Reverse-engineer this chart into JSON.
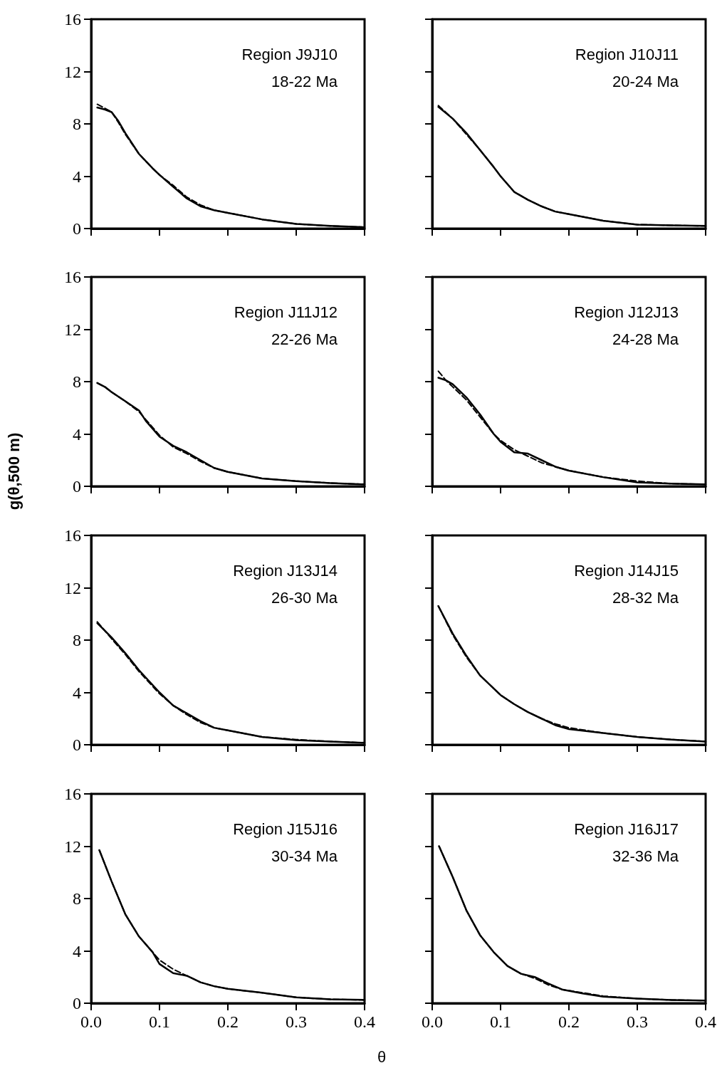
{
  "chart_data": [
    {
      "type": "line",
      "annotations": [
        "Region J9J10",
        "18-22 Ma"
      ],
      "x": [
        0.009,
        0.02,
        0.03,
        0.04,
        0.05,
        0.07,
        0.09,
        0.1,
        0.12,
        0.14,
        0.16,
        0.18,
        0.2,
        0.25,
        0.3,
        0.35,
        0.4
      ],
      "series": [
        {
          "color": "#000000",
          "line_style": "solid",
          "values": [
            9.25,
            9.1,
            8.9,
            8.2,
            7.3,
            5.7,
            4.6,
            4.1,
            3.2,
            2.3,
            1.7,
            1.4,
            1.2,
            0.7,
            0.35,
            0.2,
            0.1
          ]
        },
        {
          "color": "#000000",
          "line_style": "dashed",
          "values": [
            9.5,
            9.2,
            8.9,
            8.1,
            7.2,
            5.7,
            4.6,
            4.1,
            3.3,
            2.4,
            1.8,
            1.4,
            1.2,
            0.7,
            0.35,
            0.2,
            0.1
          ]
        }
      ],
      "xlim": [
        0,
        0.4
      ],
      "xticks": [
        0,
        0.1,
        0.2,
        0.3,
        0.4
      ],
      "ylim": [
        0,
        16
      ],
      "yticks": [
        0,
        4,
        8,
        12,
        16
      ],
      "tick_labels": "y",
      "marker": "none"
    },
    {
      "type": "line",
      "annotations": [
        "Region J10J11",
        "20-24 Ma"
      ],
      "x": [
        0.009,
        0.03,
        0.05,
        0.07,
        0.09,
        0.1,
        0.12,
        0.14,
        0.16,
        0.18,
        0.2,
        0.25,
        0.3,
        0.35,
        0.4
      ],
      "series": [
        {
          "color": "#000000",
          "line_style": "solid",
          "values": [
            9.3,
            8.4,
            7.3,
            6.0,
            4.7,
            4.0,
            2.8,
            2.2,
            1.7,
            1.3,
            1.1,
            0.6,
            0.3,
            0.25,
            0.2
          ]
        },
        {
          "color": "#000000",
          "line_style": "dashed",
          "values": [
            9.4,
            8.4,
            7.2,
            6.0,
            4.7,
            4.0,
            2.8,
            2.2,
            1.7,
            1.3,
            1.1,
            0.6,
            0.3,
            0.25,
            0.2
          ]
        }
      ],
      "xlim": [
        0,
        0.4
      ],
      "xticks": [
        0,
        0.1,
        0.2,
        0.3,
        0.4
      ],
      "ylim": [
        0,
        16
      ],
      "yticks": [
        0,
        4,
        8,
        12,
        16
      ],
      "tick_labels": false,
      "marker": "none"
    },
    {
      "type": "line",
      "annotations": [
        "Region J11J12",
        "22-26 Ma"
      ],
      "ylabel": "g(θ,500 m)",
      "x": [
        0.009,
        0.02,
        0.03,
        0.05,
        0.07,
        0.08,
        0.1,
        0.12,
        0.14,
        0.16,
        0.18,
        0.2,
        0.25,
        0.3,
        0.35,
        0.4
      ],
      "series": [
        {
          "color": "#000000",
          "line_style": "solid",
          "values": [
            7.9,
            7.6,
            7.2,
            6.5,
            5.8,
            5.0,
            3.8,
            3.1,
            2.6,
            2.0,
            1.4,
            1.1,
            0.6,
            0.4,
            0.25,
            0.15
          ]
        },
        {
          "color": "#000000",
          "line_style": "dashed",
          "values": [
            7.9,
            7.6,
            7.2,
            6.5,
            5.7,
            5.1,
            3.9,
            3.0,
            2.5,
            1.9,
            1.4,
            1.1,
            0.6,
            0.4,
            0.25,
            0.15
          ]
        }
      ],
      "xlim": [
        0,
        0.4
      ],
      "xticks": [
        0,
        0.1,
        0.2,
        0.3,
        0.4
      ],
      "ylim": [
        0,
        16
      ],
      "yticks": [
        0,
        4,
        8,
        12,
        16
      ],
      "tick_labels": "y",
      "marker": "none"
    },
    {
      "type": "line",
      "annotations": [
        "Region J12J13",
        "24-28 Ma"
      ],
      "x": [
        0.009,
        0.02,
        0.03,
        0.05,
        0.07,
        0.09,
        0.1,
        0.12,
        0.14,
        0.16,
        0.18,
        0.2,
        0.25,
        0.3,
        0.35,
        0.4
      ],
      "series": [
        {
          "color": "#000000",
          "line_style": "solid",
          "values": [
            8.3,
            8.1,
            7.8,
            6.8,
            5.5,
            4.0,
            3.4,
            2.6,
            2.5,
            2.0,
            1.5,
            1.2,
            0.7,
            0.3,
            0.2,
            0.15
          ]
        },
        {
          "color": "#000000",
          "line_style": "dashed",
          "values": [
            8.8,
            8.1,
            7.6,
            6.6,
            5.3,
            4.0,
            3.5,
            2.8,
            2.3,
            1.8,
            1.5,
            1.2,
            0.7,
            0.4,
            0.2,
            0.15
          ]
        }
      ],
      "xlim": [
        0,
        0.4
      ],
      "xticks": [
        0,
        0.1,
        0.2,
        0.3,
        0.4
      ],
      "ylim": [
        0,
        16
      ],
      "yticks": [
        0,
        4,
        8,
        12,
        16
      ],
      "tick_labels": false,
      "marker": "none"
    },
    {
      "type": "line",
      "annotations": [
        "Region J13J14",
        "26-30 Ma"
      ],
      "x": [
        0.009,
        0.03,
        0.05,
        0.07,
        0.1,
        0.12,
        0.14,
        0.16,
        0.18,
        0.2,
        0.25,
        0.3,
        0.35,
        0.4
      ],
      "series": [
        {
          "color": "#000000",
          "line_style": "solid",
          "values": [
            9.3,
            8.2,
            7.0,
            5.7,
            4.0,
            3.0,
            2.4,
            1.8,
            1.3,
            1.1,
            0.6,
            0.35,
            0.25,
            0.15
          ]
        },
        {
          "color": "#000000",
          "line_style": "dashed",
          "values": [
            9.4,
            8.1,
            6.9,
            5.6,
            3.9,
            3.0,
            2.3,
            1.7,
            1.3,
            1.1,
            0.6,
            0.4,
            0.25,
            0.15
          ]
        }
      ],
      "xlim": [
        0,
        0.4
      ],
      "xticks": [
        0,
        0.1,
        0.2,
        0.3,
        0.4
      ],
      "ylim": [
        0,
        16
      ],
      "yticks": [
        0,
        4,
        8,
        12,
        16
      ],
      "tick_labels": "y",
      "marker": "none"
    },
    {
      "type": "line",
      "annotations": [
        "Region J14J15",
        "28-32 Ma"
      ],
      "x": [
        0.009,
        0.03,
        0.05,
        0.07,
        0.1,
        0.12,
        0.14,
        0.16,
        0.18,
        0.2,
        0.25,
        0.3,
        0.35,
        0.4
      ],
      "series": [
        {
          "color": "#000000",
          "line_style": "solid",
          "values": [
            10.6,
            8.5,
            6.8,
            5.3,
            3.8,
            3.1,
            2.5,
            2.0,
            1.5,
            1.2,
            0.9,
            0.6,
            0.4,
            0.25
          ]
        },
        {
          "color": "#000000",
          "line_style": "dashed",
          "values": [
            10.6,
            8.4,
            6.7,
            5.3,
            3.8,
            3.1,
            2.5,
            2.0,
            1.6,
            1.3,
            0.9,
            0.6,
            0.4,
            0.25
          ]
        }
      ],
      "xlim": [
        0,
        0.4
      ],
      "xticks": [
        0,
        0.1,
        0.2,
        0.3,
        0.4
      ],
      "ylim": [
        0,
        16
      ],
      "yticks": [
        0,
        4,
        8,
        12,
        16
      ],
      "tick_labels": false,
      "marker": "none"
    },
    {
      "type": "line",
      "annotations": [
        "Region J15J16",
        "30-34 Ma"
      ],
      "xlabel": "θ",
      "x": [
        0.012,
        0.03,
        0.05,
        0.07,
        0.09,
        0.1,
        0.12,
        0.14,
        0.16,
        0.18,
        0.2,
        0.25,
        0.3,
        0.35,
        0.4
      ],
      "series": [
        {
          "color": "#000000",
          "line_style": "solid",
          "values": [
            11.7,
            9.3,
            6.8,
            5.1,
            3.9,
            3.0,
            2.3,
            2.1,
            1.6,
            1.3,
            1.1,
            0.8,
            0.45,
            0.3,
            0.25
          ]
        },
        {
          "color": "#000000",
          "line_style": "dashed",
          "values": [
            11.7,
            9.3,
            6.8,
            5.1,
            3.9,
            3.3,
            2.6,
            2.1,
            1.6,
            1.3,
            1.1,
            0.8,
            0.45,
            0.3,
            0.25
          ]
        }
      ],
      "xlim": [
        0,
        0.4
      ],
      "xticks": [
        {
          "value": 0,
          "label": "0.0"
        },
        {
          "value": 0.1,
          "label": "0.1"
        },
        {
          "value": 0.2,
          "label": "0.2"
        },
        {
          "value": 0.3,
          "label": "0.3"
        },
        {
          "value": 0.4,
          "label": "0.4"
        }
      ],
      "ylim": [
        0,
        16
      ],
      "yticks": [
        0,
        4,
        8,
        12,
        16
      ],
      "marker": "none"
    },
    {
      "type": "line",
      "annotations": [
        "Region J16J17",
        "32-36 Ma"
      ],
      "x": [
        0.01,
        0.03,
        0.05,
        0.07,
        0.09,
        0.11,
        0.13,
        0.15,
        0.17,
        0.19,
        0.22,
        0.25,
        0.3,
        0.35,
        0.4
      ],
      "series": [
        {
          "color": "#000000",
          "line_style": "solid",
          "values": [
            12.0,
            9.65,
            7.1,
            5.2,
            3.9,
            2.85,
            2.25,
            2.0,
            1.5,
            1.05,
            0.75,
            0.5,
            0.35,
            0.25,
            0.2
          ]
        },
        {
          "color": "#000000",
          "line_style": "dashed",
          "values": [
            12.0,
            9.65,
            7.1,
            5.2,
            3.9,
            2.85,
            2.25,
            1.9,
            1.4,
            1.05,
            0.8,
            0.55,
            0.35,
            0.25,
            0.2
          ]
        }
      ],
      "xlim": [
        0,
        0.4
      ],
      "xticks": [
        {
          "value": 0,
          "label": "0.0"
        },
        {
          "value": 0.1,
          "label": "0.1"
        },
        {
          "value": 0.2,
          "label": "0.2"
        },
        {
          "value": 0.3,
          "label": "0.3"
        },
        {
          "value": 0.4,
          "label": "0.4"
        }
      ],
      "ylim": [
        0,
        16
      ],
      "yticks": [
        0,
        4,
        8,
        12,
        16
      ],
      "tick_labels": "x",
      "marker": "none"
    }
  ]
}
